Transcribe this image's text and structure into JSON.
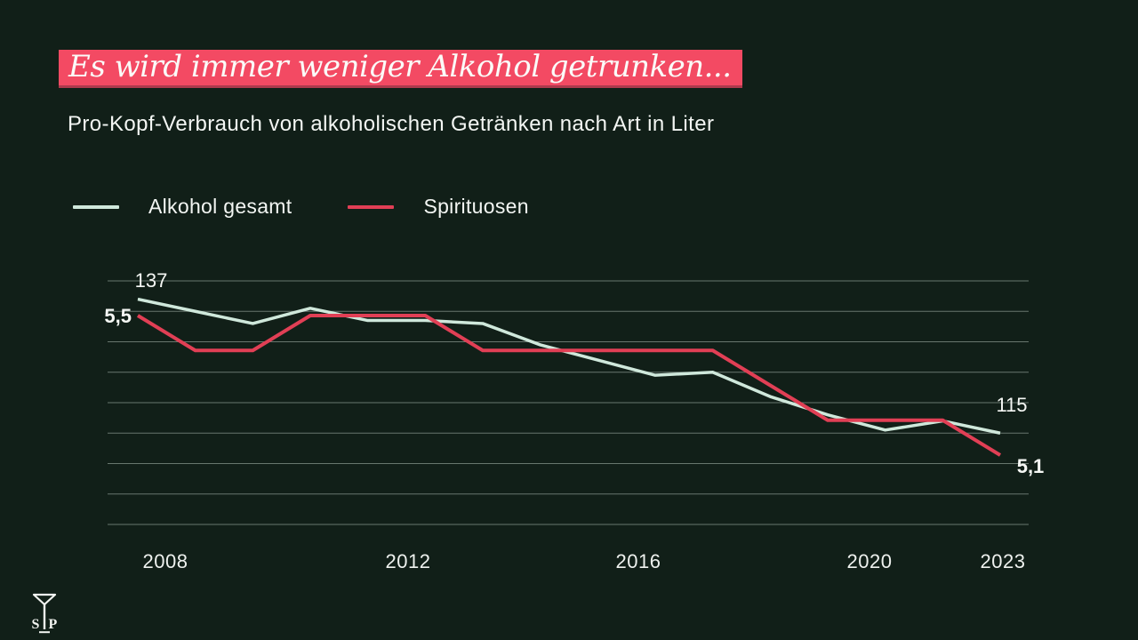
{
  "page": {
    "background_color": "#111f18",
    "accent_color": "#f34a63"
  },
  "header": {
    "title": "Es wird immer weniger Alkohol getrunken...",
    "title_highlight_color": "#f34a63",
    "subtitle": "Pro-Kopf-Verbrauch von alkoholischen Getränken nach Art in Liter"
  },
  "legend": [
    {
      "label": "Alkohol gesamt",
      "color": "#cfe8db"
    },
    {
      "label": "Spirituosen",
      "color": "#e13f55"
    }
  ],
  "chart_data": {
    "type": "line",
    "title": "Pro-Kopf-Verbrauch von alkoholischen Getränken nach Art in Liter",
    "x": [
      2008,
      2009,
      2010,
      2011,
      2012,
      2013,
      2014,
      2015,
      2016,
      2017,
      2018,
      2019,
      2020,
      2021,
      2022,
      2023
    ],
    "x_tick_labels": [
      "2008",
      "2012",
      "2016",
      "2020",
      "2023"
    ],
    "grid": "horizontal",
    "gridline_color": "#68776e",
    "series": [
      {
        "name": "Alkohol gesamt",
        "color": "#cfe8db",
        "values": [
          137,
          135,
          133,
          135.5,
          133.5,
          133.5,
          133,
          129.5,
          127,
          124.5,
          125,
          121,
          118,
          115.5,
          117,
          115
        ],
        "ylim": [
          100,
          140
        ],
        "first_label": "137",
        "last_label": "115"
      },
      {
        "name": "Spirituosen",
        "color": "#e13f55",
        "values": [
          5.5,
          5.4,
          5.4,
          5.5,
          5.5,
          5.5,
          5.4,
          5.4,
          5.4,
          5.4,
          5.4,
          5.3,
          5.2,
          5.2,
          5.2,
          5.1
        ],
        "first_label": "5,5",
        "last_label": "5,1"
      }
    ]
  },
  "footer": {
    "logo_text": "SIP"
  }
}
